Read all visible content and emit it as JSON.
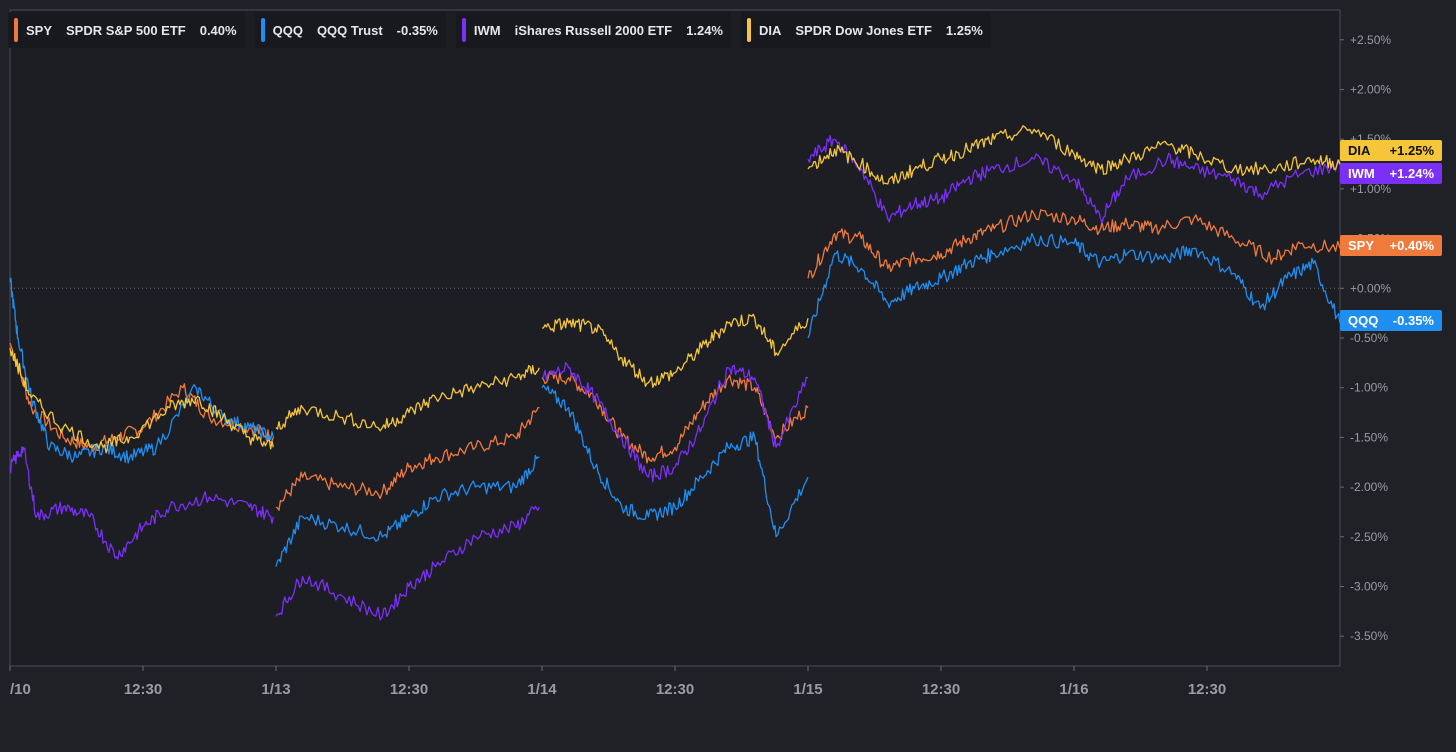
{
  "legend": [
    {
      "symbol": "SPY",
      "name": "SPDR S&P 500 ETF",
      "change": "0.40%",
      "color": "#f07a3c"
    },
    {
      "symbol": "QQQ",
      "name": "QQQ Trust",
      "change": "-0.35%",
      "color": "#1f8ef1"
    },
    {
      "symbol": "IWM",
      "name": "iShares Russell 2000 ETF",
      "change": "1.24%",
      "color": "#7b2ff7"
    },
    {
      "symbol": "DIA",
      "name": "SPDR Dow Jones ETF",
      "change": "1.25%",
      "color": "#f5c53a"
    }
  ],
  "tags": [
    {
      "symbol": "DIA",
      "value": "+1.25%",
      "color": "#f5c53a",
      "text_color": "#111111"
    },
    {
      "symbol": "IWM",
      "value": "+1.24%",
      "color": "#7b2ff7",
      "text_color": "#ffffff"
    },
    {
      "symbol": "SPY",
      "value": "+0.40%",
      "color": "#f07a3c",
      "text_color": "#ffffff"
    },
    {
      "symbol": "QQQ",
      "value": "-0.35%",
      "color": "#1f8ef1",
      "text_color": "#ffffff"
    }
  ],
  "chart_data": {
    "type": "line",
    "y_unit": "percent change",
    "ylim": [
      -3.8,
      2.8
    ],
    "yticks": [
      "+2.50%",
      "+2.00%",
      "+1.50%",
      "+1.00%",
      "+0.50%",
      "+0.00%",
      "-0.50%",
      "-1.00%",
      "-1.50%",
      "-2.00%",
      "-2.50%",
      "-3.00%",
      "-3.50%"
    ],
    "ytick_values": [
      2.5,
      2.0,
      1.5,
      1.0,
      0.5,
      0.0,
      -0.5,
      -1.0,
      -1.5,
      -2.0,
      -2.5,
      -3.0,
      -3.5
    ],
    "xticks": [
      "/10",
      "12:30",
      "1/13",
      "12:30",
      "1/14",
      "12:30",
      "1/15",
      "12:30",
      "1/16",
      "12:30"
    ],
    "xtick_values": [
      0,
      0.5,
      1,
      1.5,
      2,
      2.5,
      3,
      3.5,
      4,
      4.5
    ],
    "xlim": [
      0,
      5
    ],
    "zero_line": true,
    "series": [
      {
        "name": "SPY",
        "color": "#f07a3c",
        "segments": [
          [
            [
              0,
              -0.55
            ],
            [
              0.08,
              -1.2
            ],
            [
              0.2,
              -1.5
            ],
            [
              0.3,
              -1.6
            ],
            [
              0.4,
              -1.5
            ],
            [
              0.5,
              -1.4
            ],
            [
              0.65,
              -1.0
            ],
            [
              0.75,
              -1.3
            ],
            [
              0.9,
              -1.4
            ],
            [
              0.99,
              -1.5
            ]
          ],
          [
            [
              1.0,
              -2.2
            ],
            [
              1.1,
              -1.9
            ],
            [
              1.25,
              -2.0
            ],
            [
              1.4,
              -2.05
            ],
            [
              1.5,
              -1.8
            ],
            [
              1.6,
              -1.7
            ],
            [
              1.75,
              -1.6
            ],
            [
              1.9,
              -1.5
            ],
            [
              1.99,
              -1.2
            ]
          ],
          [
            [
              2.0,
              -0.9
            ],
            [
              2.1,
              -0.9
            ],
            [
              2.2,
              -1.1
            ],
            [
              2.3,
              -1.5
            ],
            [
              2.4,
              -1.7
            ],
            [
              2.5,
              -1.6
            ],
            [
              2.6,
              -1.2
            ],
            [
              2.7,
              -0.9
            ],
            [
              2.8,
              -1.0
            ],
            [
              2.88,
              -1.5
            ],
            [
              3.0,
              -1.2
            ]
          ],
          [
            [
              3.0,
              0.1
            ],
            [
              3.1,
              0.55
            ],
            [
              3.2,
              0.5
            ],
            [
              3.3,
              0.2
            ],
            [
              3.4,
              0.3
            ],
            [
              3.5,
              0.35
            ],
            [
              3.6,
              0.5
            ],
            [
              3.7,
              0.6
            ],
            [
              3.85,
              0.75
            ],
            [
              4.0,
              0.7
            ],
            [
              4.1,
              0.6
            ],
            [
              4.2,
              0.65
            ],
            [
              4.3,
              0.6
            ],
            [
              4.45,
              0.7
            ],
            [
              4.6,
              0.5
            ],
            [
              4.75,
              0.3
            ],
            [
              4.85,
              0.45
            ],
            [
              5.0,
              0.4
            ]
          ]
        ]
      },
      {
        "name": "QQQ",
        "color": "#1f8ef1",
        "segments": [
          [
            [
              0,
              0.1
            ],
            [
              0.03,
              -0.5
            ],
            [
              0.08,
              -1.1
            ],
            [
              0.15,
              -1.6
            ],
            [
              0.25,
              -1.7
            ],
            [
              0.35,
              -1.6
            ],
            [
              0.45,
              -1.7
            ],
            [
              0.55,
              -1.6
            ],
            [
              0.7,
              -1.0
            ],
            [
              0.8,
              -1.3
            ],
            [
              0.9,
              -1.4
            ],
            [
              0.99,
              -1.5
            ]
          ],
          [
            [
              1.0,
              -2.8
            ],
            [
              1.1,
              -2.3
            ],
            [
              1.25,
              -2.4
            ],
            [
              1.4,
              -2.5
            ],
            [
              1.5,
              -2.3
            ],
            [
              1.6,
              -2.1
            ],
            [
              1.75,
              -2.0
            ],
            [
              1.9,
              -2.0
            ],
            [
              1.99,
              -1.7
            ]
          ],
          [
            [
              2.0,
              -1.0
            ],
            [
              2.1,
              -1.2
            ],
            [
              2.2,
              -1.8
            ],
            [
              2.3,
              -2.2
            ],
            [
              2.4,
              -2.3
            ],
            [
              2.5,
              -2.2
            ],
            [
              2.6,
              -1.9
            ],
            [
              2.7,
              -1.6
            ],
            [
              2.8,
              -1.5
            ],
            [
              2.88,
              -2.5
            ],
            [
              3.0,
              -1.9
            ]
          ],
          [
            [
              3.0,
              -0.5
            ],
            [
              3.1,
              0.35
            ],
            [
              3.2,
              0.2
            ],
            [
              3.3,
              -0.15
            ],
            [
              3.4,
              0.0
            ],
            [
              3.5,
              0.1
            ],
            [
              3.6,
              0.25
            ],
            [
              3.7,
              0.35
            ],
            [
              3.85,
              0.5
            ],
            [
              4.0,
              0.45
            ],
            [
              4.1,
              0.25
            ],
            [
              4.2,
              0.35
            ],
            [
              4.35,
              0.3
            ],
            [
              4.45,
              0.4
            ],
            [
              4.6,
              0.15
            ],
            [
              4.7,
              -0.2
            ],
            [
              4.8,
              0.1
            ],
            [
              4.9,
              0.25
            ],
            [
              5.0,
              -0.35
            ]
          ]
        ]
      },
      {
        "name": "IWM",
        "color": "#7b2ff7",
        "segments": [
          [
            [
              0,
              -1.8
            ],
            [
              0.05,
              -1.6
            ],
            [
              0.1,
              -2.3
            ],
            [
              0.2,
              -2.2
            ],
            [
              0.3,
              -2.3
            ],
            [
              0.4,
              -2.7
            ],
            [
              0.5,
              -2.4
            ],
            [
              0.6,
              -2.2
            ],
            [
              0.75,
              -2.1
            ],
            [
              0.9,
              -2.2
            ],
            [
              0.99,
              -2.3
            ]
          ],
          [
            [
              1.0,
              -3.3
            ],
            [
              1.1,
              -2.9
            ],
            [
              1.25,
              -3.1
            ],
            [
              1.4,
              -3.3
            ],
            [
              1.5,
              -3.0
            ],
            [
              1.6,
              -2.8
            ],
            [
              1.75,
              -2.5
            ],
            [
              1.9,
              -2.4
            ],
            [
              1.99,
              -2.2
            ]
          ],
          [
            [
              2.0,
              -0.9
            ],
            [
              2.1,
              -0.8
            ],
            [
              2.2,
              -1.1
            ],
            [
              2.3,
              -1.5
            ],
            [
              2.4,
              -1.9
            ],
            [
              2.5,
              -1.8
            ],
            [
              2.6,
              -1.4
            ],
            [
              2.7,
              -0.8
            ],
            [
              2.8,
              -0.9
            ],
            [
              2.88,
              -1.6
            ],
            [
              3.0,
              -0.9
            ]
          ],
          [
            [
              3.0,
              1.3
            ],
            [
              3.1,
              1.5
            ],
            [
              3.2,
              1.2
            ],
            [
              3.3,
              0.7
            ],
            [
              3.4,
              0.85
            ],
            [
              3.5,
              0.9
            ],
            [
              3.6,
              1.1
            ],
            [
              3.7,
              1.2
            ],
            [
              3.85,
              1.3
            ],
            [
              4.0,
              1.1
            ],
            [
              4.1,
              0.7
            ],
            [
              4.2,
              1.1
            ],
            [
              4.35,
              1.3
            ],
            [
              4.45,
              1.2
            ],
            [
              4.6,
              1.1
            ],
            [
              4.7,
              0.95
            ],
            [
              4.85,
              1.15
            ],
            [
              5.0,
              1.24
            ]
          ]
        ]
      },
      {
        "name": "DIA",
        "color": "#f5c53a",
        "segments": [
          [
            [
              0,
              -0.6
            ],
            [
              0.08,
              -1.1
            ],
            [
              0.2,
              -1.4
            ],
            [
              0.35,
              -1.6
            ],
            [
              0.45,
              -1.5
            ],
            [
              0.6,
              -1.2
            ],
            [
              0.7,
              -1.1
            ],
            [
              0.8,
              -1.3
            ],
            [
              0.9,
              -1.5
            ],
            [
              0.99,
              -1.6
            ]
          ],
          [
            [
              1.0,
              -1.4
            ],
            [
              1.1,
              -1.2
            ],
            [
              1.25,
              -1.3
            ],
            [
              1.4,
              -1.4
            ],
            [
              1.5,
              -1.25
            ],
            [
              1.6,
              -1.1
            ],
            [
              1.75,
              -1.0
            ],
            [
              1.9,
              -0.9
            ],
            [
              1.99,
              -0.8
            ]
          ],
          [
            [
              2.0,
              -0.4
            ],
            [
              2.1,
              -0.35
            ],
            [
              2.2,
              -0.4
            ],
            [
              2.3,
              -0.7
            ],
            [
              2.4,
              -0.95
            ],
            [
              2.5,
              -0.85
            ],
            [
              2.6,
              -0.6
            ],
            [
              2.7,
              -0.35
            ],
            [
              2.8,
              -0.3
            ],
            [
              2.88,
              -0.65
            ],
            [
              3.0,
              -0.3
            ]
          ],
          [
            [
              3.0,
              1.2
            ],
            [
              3.1,
              1.4
            ],
            [
              3.2,
              1.25
            ],
            [
              3.3,
              1.05
            ],
            [
              3.4,
              1.2
            ],
            [
              3.5,
              1.3
            ],
            [
              3.6,
              1.4
            ],
            [
              3.7,
              1.5
            ],
            [
              3.85,
              1.6
            ],
            [
              4.0,
              1.35
            ],
            [
              4.1,
              1.2
            ],
            [
              4.2,
              1.3
            ],
            [
              4.35,
              1.45
            ],
            [
              4.45,
              1.35
            ],
            [
              4.6,
              1.2
            ],
            [
              4.75,
              1.2
            ],
            [
              4.9,
              1.3
            ],
            [
              5.0,
              1.25
            ]
          ]
        ]
      }
    ]
  }
}
